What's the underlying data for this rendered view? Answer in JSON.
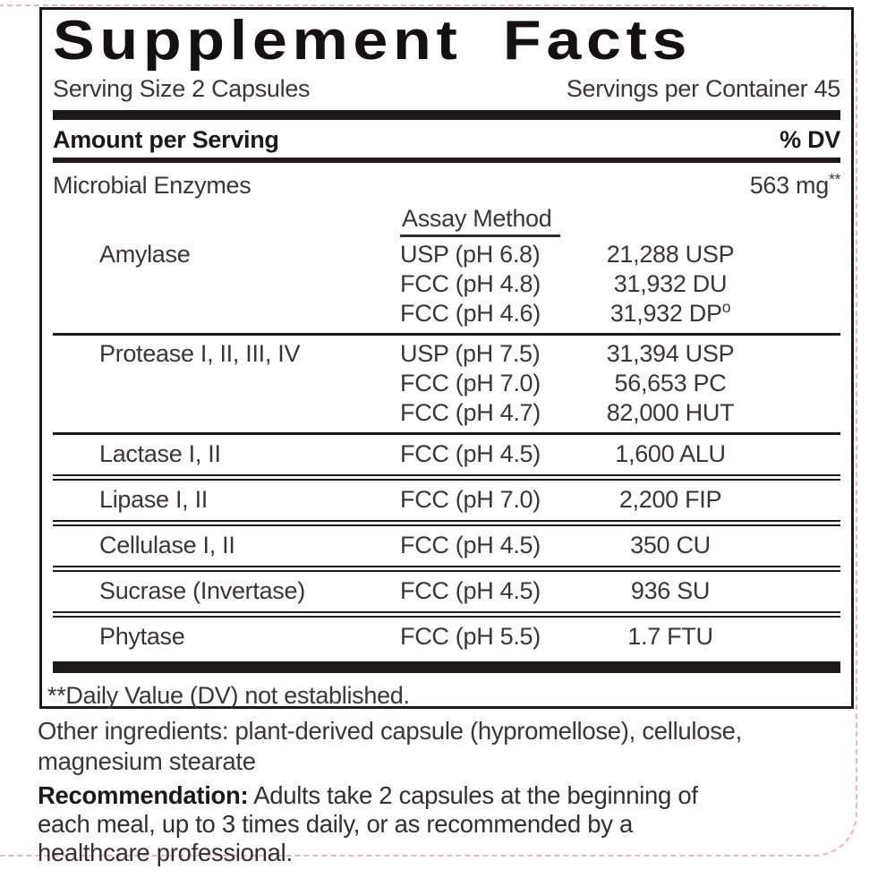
{
  "label": {
    "title": "Supplement Facts",
    "serving_size": "Serving Size 2 Capsules",
    "servings_per_container": "Servings per Container 45",
    "amount_per_serving": "Amount per Serving",
    "percent_dv": "% DV",
    "microbial_enzymes": "Microbial Enzymes",
    "microbial_amount": "563 mg",
    "microbial_amount_sup": "**",
    "assay_method_header": "Assay Method",
    "enzymes": [
      {
        "name": "Amylase",
        "lines": [
          {
            "assay": "USP (pH 6.8)",
            "amount": "21,288 USP"
          },
          {
            "assay": "FCC (pH 4.8)",
            "amount": "31,932 DU"
          },
          {
            "assay": "FCC (pH 4.6)",
            "amount": "31,932 DP",
            "amount_sup": "o"
          }
        ]
      },
      {
        "name": "Protease I, II, III, IV",
        "lines": [
          {
            "assay": "USP (pH 7.5)",
            "amount": "31,394 USP"
          },
          {
            "assay": "FCC (pH 7.0)",
            "amount": "56,653 PC"
          },
          {
            "assay": "FCC (pH 4.7)",
            "amount": "82,000 HUT"
          }
        ]
      },
      {
        "name": "Lactase I, II",
        "lines": [
          {
            "assay": "FCC (pH 4.5)",
            "amount": "1,600 ALU"
          }
        ]
      },
      {
        "name": "Lipase I, II",
        "lines": [
          {
            "assay": "FCC (pH 7.0)",
            "amount": "2,200 FIP"
          }
        ]
      },
      {
        "name": "Cellulase I, II",
        "lines": [
          {
            "assay": "FCC (pH 4.5)",
            "amount": "350 CU"
          }
        ]
      },
      {
        "name": "Sucrase (Invertase)",
        "lines": [
          {
            "assay": "FCC (pH 4.5)",
            "amount": "936 SU"
          }
        ]
      },
      {
        "name": "Phytase",
        "lines": [
          {
            "assay": "FCC (pH 5.5)",
            "amount": "1.7 FTU"
          }
        ]
      }
    ],
    "footnote": "**Daily Value (DV) not established."
  },
  "below": {
    "other_ingredients": "Other ingredients: plant-derived capsule (hypromellose), cellulose, magnesium stearate",
    "recommendation_label": "Recommendation:",
    "recommendation_text": " Adults take 2 capsules at the beginning of each meal, up to 3 times daily, or as recommended by a healthcare professional."
  },
  "colors": {
    "text": "#3a3637",
    "bold_text": "#1b191a",
    "rule_line": "#1c1a1b",
    "dieline_pink": "#f3a8c0",
    "background": "#ffffff"
  }
}
